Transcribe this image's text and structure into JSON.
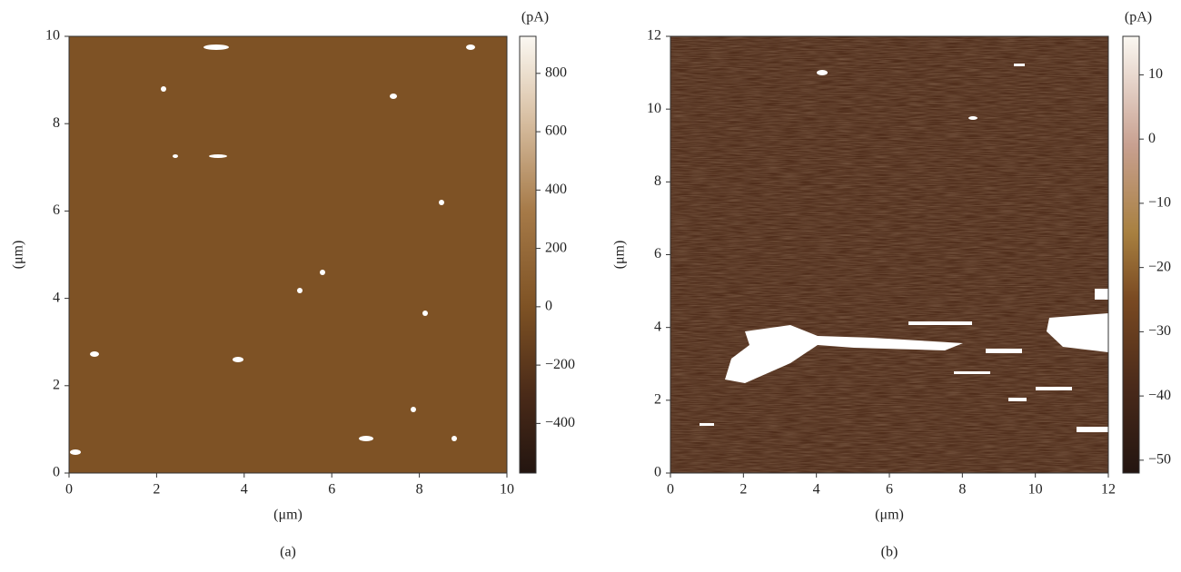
{
  "chart_data": [
    {
      "type": "heatmap",
      "caption": "(a)",
      "xlabel": "(μm)",
      "ylabel": "(μm)",
      "colorbar_label": "(pA)",
      "xlim": [
        0,
        10
      ],
      "ylim": [
        0,
        10
      ],
      "xticks": [
        0,
        2,
        4,
        6,
        8,
        10
      ],
      "yticks": [
        0,
        2,
        4,
        6,
        8,
        10
      ],
      "clim": [
        -570,
        927
      ],
      "cticks": [
        {
          "value": -400,
          "label": "−400"
        },
        {
          "value": -200,
          "label": "−200"
        },
        0,
        200,
        400,
        600,
        800
      ]
    },
    {
      "type": "heatmap",
      "caption": "(b)",
      "xlabel": "(μm)",
      "ylabel": "(μm)",
      "colorbar_label": "(pA)",
      "xlim": [
        0,
        12
      ],
      "ylim": [
        0,
        12
      ],
      "xticks": [
        0,
        2,
        4,
        6,
        8,
        10,
        12
      ],
      "yticks": [
        0,
        2,
        4,
        6,
        8,
        10,
        12
      ],
      "clim": [
        -52,
        16
      ],
      "cticks": [
        {
          "value": -50,
          "label": "−50"
        },
        {
          "value": -40,
          "label": "−40"
        },
        {
          "value": -30,
          "label": "−30"
        },
        {
          "value": -20,
          "label": "−20"
        },
        {
          "value": -10,
          "label": "−10"
        },
        0,
        10
      ]
    }
  ]
}
